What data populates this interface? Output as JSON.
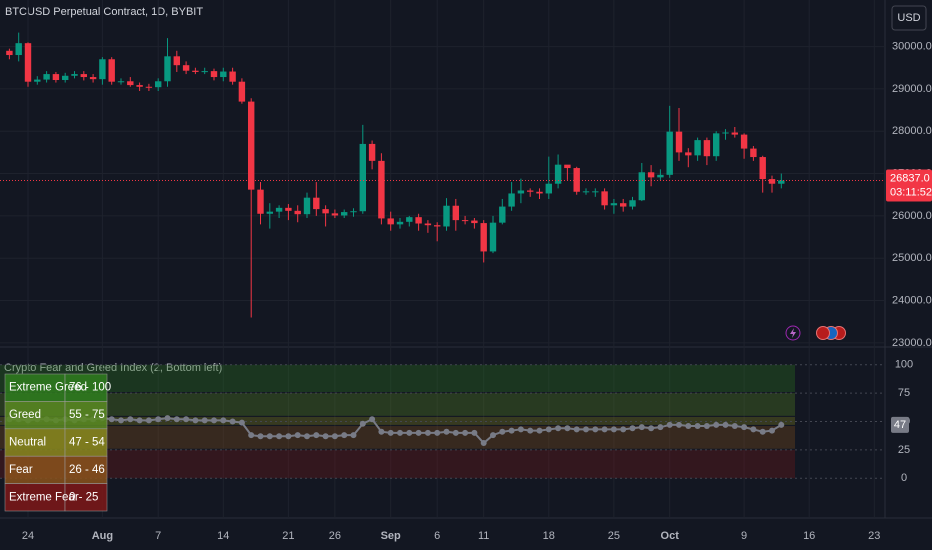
{
  "header": {
    "symbol": "BTCUSD Perpetual Contract, 1D, BYBIT",
    "currency": "USD"
  },
  "chart_data": [
    {
      "type": "candlestick",
      "x": [
        "Jul 22",
        "Jul 23",
        "Jul 24",
        "Jul 25",
        "Jul 26",
        "Jul 27",
        "Jul 28",
        "Jul 29",
        "Jul 30",
        "Jul 31",
        "Aug 1",
        "Aug 2",
        "Aug 3",
        "Aug 4",
        "Aug 5",
        "Aug 6",
        "Aug 7",
        "Aug 8",
        "Aug 9",
        "Aug 10",
        "Aug 11",
        "Aug 12",
        "Aug 13",
        "Aug 14",
        "Aug 15",
        "Aug 16",
        "Aug 17",
        "Aug 18",
        "Aug 19",
        "Aug 20",
        "Aug 21",
        "Aug 22",
        "Aug 23",
        "Aug 24",
        "Aug 25",
        "Aug 26",
        "Aug 27",
        "Aug 28",
        "Aug 29",
        "Aug 30",
        "Aug 31",
        "Sep 1",
        "Sep 2",
        "Sep 3",
        "Sep 4",
        "Sep 5",
        "Sep 6",
        "Sep 7",
        "Sep 8",
        "Sep 9",
        "Sep 10",
        "Sep 11",
        "Sep 12",
        "Sep 13",
        "Sep 14",
        "Sep 15",
        "Sep 16",
        "Sep 17",
        "Sep 18",
        "Sep 19",
        "Sep 20",
        "Sep 21",
        "Sep 22",
        "Sep 23",
        "Sep 24",
        "Sep 25",
        "Sep 26",
        "Sep 27",
        "Sep 28",
        "Sep 29",
        "Sep 30",
        "Oct 1",
        "Oct 2",
        "Oct 3",
        "Oct 4",
        "Oct 5",
        "Oct 6",
        "Oct 7",
        "Oct 8",
        "Oct 9",
        "Oct 10",
        "Oct 11",
        "Oct 12",
        "Oct 13"
      ],
      "open": [
        29900,
        29800,
        30080,
        29170,
        29220,
        29350,
        29210,
        29310,
        29350,
        29280,
        29230,
        29700,
        29170,
        29180,
        29090,
        29050,
        29040,
        29180,
        29770,
        29560,
        29430,
        29400,
        29420,
        29280,
        29410,
        29170,
        28700,
        26620,
        26050,
        26100,
        26190,
        26120,
        26040,
        26430,
        26160,
        26060,
        26010,
        26090,
        26110,
        27700,
        27300,
        25940,
        25800,
        25860,
        25970,
        25820,
        25780,
        25750,
        26240,
        25900,
        25890,
        25830,
        25160,
        25840,
        26220,
        26530,
        26600,
        26570,
        26530,
        26760,
        27210,
        27130,
        26570,
        26580,
        26580,
        26250,
        26300,
        26220,
        26370,
        27030,
        26910,
        26970,
        27990,
        27500,
        27430,
        27790,
        27410,
        27950,
        27970,
        27920,
        27590,
        27390,
        26870,
        26760
      ],
      "high": [
        29950,
        30330,
        30100,
        29300,
        29420,
        29400,
        29380,
        29420,
        29420,
        29350,
        29750,
        29750,
        29250,
        29280,
        29150,
        29120,
        29250,
        30200,
        29900,
        29650,
        29500,
        29500,
        29480,
        29500,
        29500,
        29250,
        28780,
        26800,
        26300,
        26250,
        26280,
        26250,
        26550,
        26800,
        26250,
        26150,
        26150,
        26180,
        28150,
        27780,
        27480,
        26100,
        25950,
        26000,
        26050,
        25900,
        25850,
        26420,
        26400,
        26000,
        25950,
        25900,
        26000,
        26400,
        26800,
        26880,
        26650,
        26650,
        27400,
        27450,
        27170,
        27160,
        26650,
        26650,
        26650,
        26400,
        26400,
        26450,
        27250,
        27200,
        27100,
        28600,
        28550,
        27600,
        27850,
        27850,
        28000,
        28050,
        28100,
        27950,
        27650,
        27420,
        26950,
        27000
      ],
      "low": [
        29700,
        29650,
        29050,
        29100,
        29150,
        29150,
        29150,
        29250,
        29200,
        29150,
        29100,
        29100,
        29100,
        29050,
        28950,
        28950,
        28950,
        29050,
        29400,
        29350,
        29350,
        29350,
        29200,
        29180,
        29100,
        28650,
        23600,
        25800,
        25700,
        25950,
        25900,
        25850,
        25950,
        26000,
        25750,
        25950,
        25950,
        25980,
        26050,
        27100,
        25800,
        25650,
        25700,
        25750,
        25650,
        25600,
        25400,
        25650,
        25650,
        25800,
        25700,
        24900,
        25120,
        25800,
        26120,
        26300,
        26450,
        26400,
        26400,
        26650,
        26850,
        26500,
        26500,
        26450,
        26150,
        26050,
        26100,
        26150,
        26350,
        26700,
        26850,
        26900,
        27300,
        27150,
        27300,
        27200,
        27300,
        27800,
        27850,
        27350,
        27300,
        26550,
        26550,
        26650
      ],
      "close": [
        29800,
        30080,
        29170,
        29220,
        29350,
        29210,
        29310,
        29350,
        29280,
        29230,
        29700,
        29170,
        29180,
        29090,
        29050,
        29040,
        29180,
        29770,
        29560,
        29430,
        29400,
        29420,
        29280,
        29410,
        29170,
        28700,
        26620,
        26050,
        26100,
        26190,
        26120,
        26040,
        26430,
        26160,
        26060,
        26010,
        26090,
        26110,
        27700,
        27300,
        25940,
        25800,
        25860,
        25970,
        25820,
        25780,
        25750,
        26240,
        25900,
        25890,
        25830,
        25160,
        25840,
        26220,
        26530,
        26600,
        26570,
        26530,
        26760,
        27210,
        27130,
        26570,
        26580,
        26580,
        26250,
        26300,
        26220,
        26370,
        27030,
        26910,
        26970,
        27990,
        27500,
        27430,
        27790,
        27410,
        27950,
        27970,
        27920,
        27590,
        27390,
        26870,
        26760,
        26837
      ],
      "up_color": "#089981",
      "down_color": "#f23645",
      "ylim": [
        22950,
        31100
      ],
      "yticks": [
        {
          "value": 23000,
          "label": "23000.0"
        },
        {
          "value": 24000,
          "label": "24000.0"
        },
        {
          "value": 25000,
          "label": "25000.0"
        },
        {
          "value": 26000,
          "label": "26000.0"
        },
        {
          "value": 27000,
          "label": "27000.0"
        },
        {
          "value": 28000,
          "label": "28000.0"
        },
        {
          "value": 29000,
          "label": "29000.0"
        },
        {
          "value": 30000,
          "label": "30000.0"
        }
      ],
      "xticks": [
        {
          "value": "Jul 24",
          "label": "24"
        },
        {
          "value": "Aug 1",
          "label": "Aug"
        },
        {
          "value": "Aug 7",
          "label": "7"
        },
        {
          "value": "Aug 14",
          "label": "14"
        },
        {
          "value": "Aug 21",
          "label": "21"
        },
        {
          "value": "Aug 26",
          "label": "26"
        },
        {
          "value": "Sep 1",
          "label": "Sep"
        },
        {
          "value": "Sep 6",
          "label": "6"
        },
        {
          "value": "Sep 11",
          "label": "11"
        },
        {
          "value": "Sep 18",
          "label": "18"
        },
        {
          "value": "Sep 25",
          "label": "25"
        },
        {
          "value": "Oct 1",
          "label": "Oct"
        },
        {
          "value": "Oct 9",
          "label": "9"
        },
        {
          "value": "Oct 16",
          "label": "16"
        },
        {
          "value": "Oct 23",
          "label": "23"
        }
      ],
      "grid": true,
      "last_price": {
        "value": 26837,
        "label": "26837.0",
        "countdown": "03:11:52"
      }
    },
    {
      "type": "line",
      "title": "Crypto Fear and Greed Index (2, Bottom left)",
      "values": [
        52,
        52,
        51,
        52,
        52,
        51,
        52,
        51,
        52,
        52,
        53,
        52,
        51,
        52,
        51,
        51,
        52,
        53,
        52,
        52,
        51,
        51,
        51,
        51,
        50,
        49,
        38,
        37,
        37,
        37,
        37,
        38,
        37,
        38,
        37,
        37,
        38,
        38,
        48,
        52,
        41,
        40,
        40,
        40,
        40,
        40,
        40,
        41,
        40,
        40,
        40,
        31,
        38,
        41,
        42,
        43,
        42,
        42,
        43,
        44,
        44,
        43,
        43,
        43,
        43,
        43,
        43,
        44,
        45,
        44,
        45,
        47,
        47,
        46,
        46,
        46,
        47,
        47,
        46,
        45,
        43,
        41,
        42,
        47
      ],
      "color": "#787b86",
      "ylim": [
        -28,
        113
      ],
      "yticks": [
        0,
        25,
        50,
        75,
        100
      ],
      "bands": [
        {
          "name": "Extreme Greed",
          "range": "76 - 100",
          "from": 76,
          "to": 100,
          "color": "#2f7d1e"
        },
        {
          "name": "Greed",
          "range": "55 - 75",
          "from": 55,
          "to": 75,
          "color": "#5a8a22"
        },
        {
          "name": "Neutral",
          "range": "47 - 54",
          "from": 47,
          "to": 54,
          "color": "#8a8a1e"
        },
        {
          "name": "Fear",
          "range": "26 - 46",
          "from": 26,
          "to": 46,
          "color": "#8a521c"
        },
        {
          "name": "Extreme Fear",
          "range": "0 - 25",
          "from": 0,
          "to": 25,
          "color": "#7e1818"
        }
      ]
    }
  ]
}
